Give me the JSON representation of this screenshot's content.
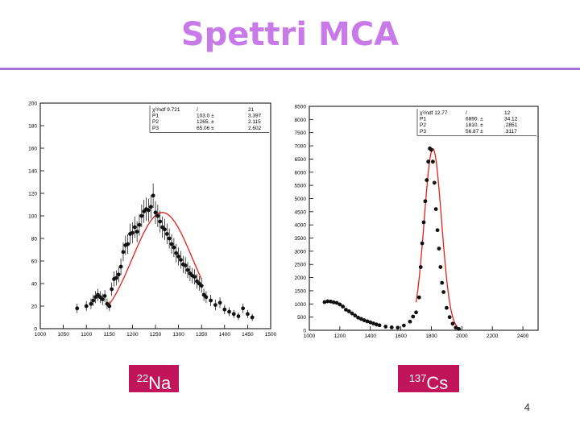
{
  "slide": {
    "title": "Spettri MCA",
    "page_number": "4",
    "labels": [
      {
        "mass": "22",
        "element": "Na"
      },
      {
        "mass": "137",
        "element": "Cs"
      }
    ]
  },
  "colors": {
    "title": "#c77ae8",
    "rule": "#b06ed8",
    "label_bg": "#c0155a",
    "fit": "#e0201a",
    "points": "#111111"
  },
  "chart_data": [
    {
      "type": "scatter",
      "title": "22Na",
      "xlim": [
        1000,
        1500
      ],
      "ylim": [
        0,
        200
      ],
      "xticks": [
        1000,
        1050,
        1100,
        1150,
        1200,
        1250,
        1300,
        1350,
        1400,
        1450,
        1500
      ],
      "yticks": [
        0,
        20,
        40,
        60,
        80,
        100,
        120,
        140,
        160,
        180,
        200
      ],
      "stats": {
        "header": [
          "χ²/ndf 9.721",
          "/",
          "21"
        ],
        "rows": [
          [
            "P1",
            "103.0 ±",
            "3.397"
          ],
          [
            "P2",
            "1265. ±",
            "2.115"
          ],
          [
            "P3",
            "65.06 ±",
            "2.602"
          ]
        ]
      },
      "x": [
        1080,
        1100,
        1110,
        1115,
        1120,
        1125,
        1130,
        1135,
        1140,
        1145,
        1150,
        1155,
        1160,
        1165,
        1170,
        1175,
        1180,
        1185,
        1190,
        1195,
        1200,
        1205,
        1210,
        1215,
        1220,
        1225,
        1230,
        1235,
        1240,
        1245,
        1250,
        1255,
        1260,
        1265,
        1270,
        1275,
        1280,
        1285,
        1290,
        1295,
        1300,
        1305,
        1310,
        1315,
        1320,
        1325,
        1330,
        1335,
        1340,
        1345,
        1350,
        1355,
        1360,
        1370,
        1380,
        1390,
        1400,
        1410,
        1420,
        1430,
        1440,
        1450,
        1460
      ],
      "y": [
        18,
        20,
        22,
        25,
        28,
        30,
        28,
        26,
        29,
        22,
        20,
        35,
        44,
        45,
        48,
        55,
        68,
        74,
        75,
        84,
        85,
        90,
        86,
        92,
        100,
        104,
        106,
        105,
        108,
        118,
        103,
        100,
        95,
        90,
        88,
        84,
        80,
        75,
        72,
        67,
        64,
        61,
        57,
        56,
        52,
        49,
        47,
        46,
        42,
        40,
        38,
        30,
        28,
        25,
        21,
        23,
        17,
        15,
        13,
        11,
        18,
        13,
        10
      ],
      "fit": {
        "function": "gaussian",
        "range": [
          1150,
          1350
        ],
        "constant": 103.0,
        "mean": 1265,
        "sigma": 65.06
      }
    },
    {
      "type": "scatter",
      "title": "137Cs",
      "xlim": [
        1000,
        2500
      ],
      "ylim": [
        0,
        8500
      ],
      "xticks": [
        1000,
        1200,
        1400,
        1600,
        1800,
        2000,
        2200,
        2400
      ],
      "yticks": [
        0,
        500,
        1000,
        1500,
        2000,
        2500,
        3000,
        3500,
        4000,
        4500,
        5000,
        5500,
        6000,
        6500,
        7000,
        7500,
        8000,
        8500
      ],
      "stats": {
        "header": [
          "χ²/ndf 12.77",
          "/",
          "12"
        ],
        "rows": [
          [
            "P1",
            "6890. ±",
            "34.12"
          ],
          [
            "P2",
            "1810. ±",
            ".2851"
          ],
          [
            "P3",
            "56.87 ±",
            ".3117"
          ]
        ]
      },
      "x": [
        1100,
        1120,
        1140,
        1160,
        1180,
        1200,
        1220,
        1240,
        1260,
        1280,
        1300,
        1320,
        1340,
        1360,
        1380,
        1400,
        1420,
        1440,
        1460,
        1500,
        1540,
        1580,
        1620,
        1660,
        1680,
        1700,
        1720,
        1730,
        1740,
        1750,
        1760,
        1770,
        1780,
        1790,
        1800,
        1810,
        1820,
        1830,
        1840,
        1850,
        1860,
        1870,
        1880,
        1900,
        1920,
        1940,
        1960,
        1980
      ],
      "y": [
        1070,
        1100,
        1090,
        1060,
        1040,
        980,
        900,
        780,
        720,
        640,
        560,
        480,
        430,
        380,
        340,
        300,
        260,
        220,
        190,
        140,
        110,
        100,
        180,
        330,
        520,
        680,
        1250,
        2400,
        3300,
        4100,
        4900,
        5700,
        6400,
        6900,
        6850,
        6400,
        5600,
        4600,
        3800,
        3100,
        2400,
        1800,
        1450,
        850,
        500,
        250,
        100,
        50
      ],
      "fit": {
        "function": "gaussian",
        "range": [
          1700,
          1970
        ],
        "constant": 6890,
        "mean": 1810,
        "sigma": 56.87
      }
    }
  ]
}
